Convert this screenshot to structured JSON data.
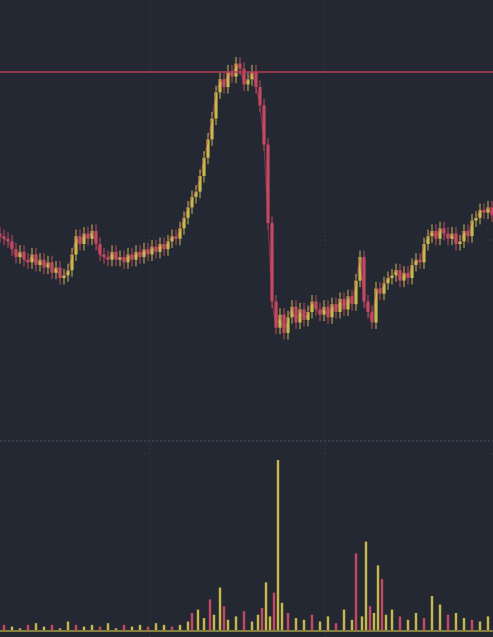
{
  "theme": {
    "background": "#232833",
    "grid": "#363c48",
    "separator": "#4a505c",
    "up": "#c7b94c",
    "down": "#c44862",
    "resistance_line": "#b43a56"
  },
  "chart_data": [
    {
      "type": "candlestick",
      "title": "",
      "xlabel": "",
      "ylabel": "",
      "grid": true,
      "legend": "none",
      "x": [
        0,
        4,
        8,
        12,
        16,
        20,
        24,
        28,
        32,
        36,
        40,
        44,
        48,
        52,
        56,
        60,
        64,
        68,
        72,
        76,
        80,
        84,
        88,
        92,
        96,
        100,
        104,
        108,
        112,
        116,
        120,
        124,
        128,
        132,
        136,
        140,
        144,
        148,
        152,
        156,
        160,
        164,
        168,
        172,
        176,
        180,
        184,
        188,
        192,
        196,
        200,
        204,
        208,
        212,
        216,
        220,
        224,
        228,
        232,
        236,
        240,
        244,
        248,
        252,
        256,
        260,
        264,
        268,
        272,
        276,
        280,
        284,
        288,
        292,
        296,
        300,
        304,
        308,
        312,
        316,
        320,
        324,
        328,
        332,
        336,
        340,
        344,
        348,
        352,
        356,
        360,
        364,
        368,
        372,
        376,
        380,
        384,
        388,
        392,
        396,
        400,
        404,
        408,
        412,
        416,
        420,
        424,
        428,
        432,
        436,
        440,
        444,
        448,
        452,
        456,
        460,
        464,
        468,
        472,
        476,
        480,
        484,
        488,
        492
      ],
      "close": [
        55,
        54,
        53,
        50,
        47,
        49,
        46,
        45,
        48,
        44,
        46,
        43,
        45,
        41,
        43,
        39,
        40,
        42,
        48,
        55,
        52,
        56,
        54,
        57,
        52,
        48,
        47,
        46,
        49,
        46,
        47,
        45,
        48,
        46,
        49,
        47,
        50,
        48,
        51,
        49,
        52,
        50,
        53,
        55,
        54,
        58,
        62,
        66,
        70,
        72,
        78,
        85,
        92,
        100,
        110,
        115,
        112,
        118,
        116,
        121,
        119,
        113,
        115,
        118,
        112,
        105,
        90,
        60,
        30,
        20,
        25,
        18,
        24,
        28,
        22,
        27,
        23,
        26,
        30,
        27,
        25,
        28,
        24,
        29,
        26,
        31,
        27,
        32,
        29,
        38,
        47,
        30,
        26,
        22,
        35,
        33,
        37,
        39,
        40,
        42,
        38,
        41,
        39,
        44,
        46,
        45,
        52,
        55,
        57,
        54,
        58,
        56,
        54,
        56,
        52,
        53,
        57,
        55,
        61,
        62,
        65,
        64,
        66,
        63
      ]
    },
    {
      "type": "bar",
      "title": "",
      "xlabel": "",
      "ylabel": "",
      "legend": "none",
      "x": [
        4,
        12,
        20,
        28,
        36,
        44,
        52,
        60,
        68,
        76,
        84,
        92,
        100,
        108,
        116,
        124,
        132,
        140,
        148,
        156,
        164,
        172,
        180,
        188,
        192,
        198,
        204,
        210,
        214,
        220,
        224,
        228,
        236,
        244,
        252,
        258,
        262,
        266,
        270,
        274,
        278,
        282,
        288,
        296,
        304,
        312,
        320,
        328,
        336,
        344,
        352,
        356,
        362,
        366,
        370,
        374,
        378,
        382,
        386,
        392,
        400,
        408,
        416,
        424,
        432,
        440,
        448,
        456,
        464,
        472,
        480,
        488
      ],
      "values": [
        3,
        2,
        1,
        3,
        4,
        2,
        3,
        1,
        5,
        3,
        2,
        3,
        2,
        4,
        1,
        3,
        2,
        3,
        2,
        4,
        3,
        2,
        3,
        5,
        10,
        12,
        7,
        18,
        9,
        25,
        14,
        6,
        8,
        11,
        5,
        9,
        13,
        28,
        8,
        22,
        100,
        16,
        10,
        7,
        6,
        9,
        5,
        8,
        4,
        12,
        6,
        45,
        8,
        52,
        14,
        10,
        38,
        30,
        9,
        12,
        8,
        6,
        10,
        7,
        20,
        15,
        9,
        10,
        7,
        6,
        5,
        8
      ]
    }
  ]
}
